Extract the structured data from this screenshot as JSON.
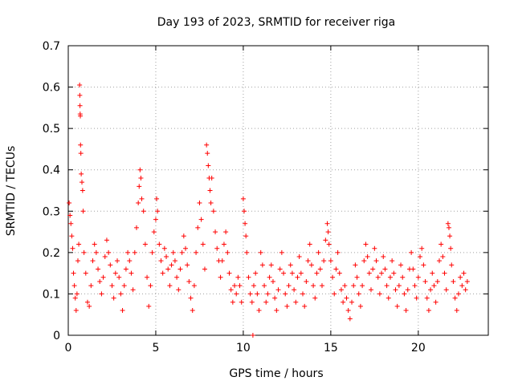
{
  "chart_data": {
    "type": "scatter",
    "title": "Day 193 of 2023, SRMTID for receiver riga",
    "xlabel": "GPS time / hours",
    "ylabel": "SRMTID / TECUs",
    "xlim": [
      0,
      24
    ],
    "ylim": [
      0,
      0.7
    ],
    "xticks": [
      {
        "value": 0,
        "label": "0"
      },
      {
        "value": 5,
        "label": "5"
      },
      {
        "value": 10,
        "label": "10"
      },
      {
        "value": 15,
        "label": "15"
      },
      {
        "value": 20,
        "label": "20"
      }
    ],
    "yticks": [
      {
        "value": 0,
        "label": "0"
      },
      {
        "value": 0.1,
        "label": "0.1"
      },
      {
        "value": 0.2,
        "label": "0.2"
      },
      {
        "value": 0.3,
        "label": "0.3"
      },
      {
        "value": 0.4,
        "label": "0.4"
      },
      {
        "value": 0.5,
        "label": "0.5"
      },
      {
        "value": 0.6,
        "label": "0.6"
      },
      {
        "value": 0.7,
        "label": "0.7"
      }
    ],
    "grid": true,
    "marker": "plus",
    "color": "#ff0000",
    "series": [
      {
        "name": "SRMTID",
        "points": [
          [
            0.05,
            0.32
          ],
          [
            0.1,
            0.29
          ],
          [
            0.15,
            0.27
          ],
          [
            0.2,
            0.24
          ],
          [
            0.25,
            0.21
          ],
          [
            0.3,
            0.15
          ],
          [
            0.35,
            0.12
          ],
          [
            0.4,
            0.09
          ],
          [
            0.45,
            0.06
          ],
          [
            0.5,
            0.1
          ],
          [
            0.55,
            0.18
          ],
          [
            0.6,
            0.22
          ],
          [
            0.65,
            0.605
          ],
          [
            0.66,
            0.58
          ],
          [
            0.67,
            0.555
          ],
          [
            0.68,
            0.535
          ],
          [
            0.69,
            0.53
          ],
          [
            0.7,
            0.46
          ],
          [
            0.72,
            0.44
          ],
          [
            0.74,
            0.39
          ],
          [
            0.78,
            0.37
          ],
          [
            0.82,
            0.35
          ],
          [
            0.85,
            0.3
          ],
          [
            0.9,
            0.2
          ],
          [
            1.0,
            0.15
          ],
          [
            1.1,
            0.08
          ],
          [
            1.2,
            0.07
          ],
          [
            1.3,
            0.12
          ],
          [
            1.4,
            0.18
          ],
          [
            1.5,
            0.22
          ],
          [
            1.6,
            0.2
          ],
          [
            1.7,
            0.16
          ],
          [
            1.8,
            0.13
          ],
          [
            1.9,
            0.1
          ],
          [
            2.0,
            0.14
          ],
          [
            2.1,
            0.19
          ],
          [
            2.2,
            0.23
          ],
          [
            2.3,
            0.2
          ],
          [
            2.4,
            0.17
          ],
          [
            2.5,
            0.12
          ],
          [
            2.6,
            0.09
          ],
          [
            2.7,
            0.15
          ],
          [
            2.8,
            0.18
          ],
          [
            2.9,
            0.14
          ],
          [
            3.0,
            0.1
          ],
          [
            3.1,
            0.06
          ],
          [
            3.2,
            0.12
          ],
          [
            3.3,
            0.16
          ],
          [
            3.4,
            0.2
          ],
          [
            3.5,
            0.18
          ],
          [
            3.6,
            0.15
          ],
          [
            3.7,
            0.11
          ],
          [
            3.8,
            0.2
          ],
          [
            3.9,
            0.26
          ],
          [
            4.0,
            0.32
          ],
          [
            4.05,
            0.36
          ],
          [
            4.1,
            0.4
          ],
          [
            4.15,
            0.38
          ],
          [
            4.2,
            0.33
          ],
          [
            4.3,
            0.3
          ],
          [
            4.4,
            0.22
          ],
          [
            4.5,
            0.14
          ],
          [
            4.6,
            0.07
          ],
          [
            4.7,
            0.12
          ],
          [
            4.8,
            0.2
          ],
          [
            4.9,
            0.25
          ],
          [
            5.0,
            0.28
          ],
          [
            5.05,
            0.33
          ],
          [
            5.1,
            0.3
          ],
          [
            5.2,
            0.22
          ],
          [
            5.3,
            0.18
          ],
          [
            5.4,
            0.15
          ],
          [
            5.5,
            0.21
          ],
          [
            5.6,
            0.19
          ],
          [
            5.7,
            0.16
          ],
          [
            5.8,
            0.12
          ],
          [
            5.9,
            0.17
          ],
          [
            6.0,
            0.2
          ],
          [
            6.1,
            0.18
          ],
          [
            6.2,
            0.14
          ],
          [
            6.3,
            0.11
          ],
          [
            6.4,
            0.16
          ],
          [
            6.5,
            0.2
          ],
          [
            6.6,
            0.24
          ],
          [
            6.7,
            0.21
          ],
          [
            6.8,
            0.17
          ],
          [
            6.9,
            0.13
          ],
          [
            7.0,
            0.09
          ],
          [
            7.1,
            0.06
          ],
          [
            7.2,
            0.12
          ],
          [
            7.3,
            0.2
          ],
          [
            7.4,
            0.26
          ],
          [
            7.5,
            0.32
          ],
          [
            7.6,
            0.28
          ],
          [
            7.7,
            0.22
          ],
          [
            7.8,
            0.16
          ],
          [
            7.9,
            0.46
          ],
          [
            7.95,
            0.44
          ],
          [
            8.0,
            0.41
          ],
          [
            8.05,
            0.38
          ],
          [
            8.1,
            0.35
          ],
          [
            8.15,
            0.32
          ],
          [
            8.2,
            0.38
          ],
          [
            8.3,
            0.3
          ],
          [
            8.4,
            0.25
          ],
          [
            8.5,
            0.21
          ],
          [
            8.6,
            0.18
          ],
          [
            8.7,
            0.14
          ],
          [
            8.8,
            0.18
          ],
          [
            8.9,
            0.22
          ],
          [
            9.0,
            0.25
          ],
          [
            9.1,
            0.2
          ],
          [
            9.2,
            0.15
          ],
          [
            9.3,
            0.11
          ],
          [
            9.4,
            0.08
          ],
          [
            9.5,
            0.12
          ],
          [
            9.6,
            0.1
          ],
          [
            9.7,
            0.14
          ],
          [
            9.8,
            0.12
          ],
          [
            9.9,
            0.08
          ],
          [
            10.0,
            0.33
          ],
          [
            10.05,
            0.3
          ],
          [
            10.1,
            0.27
          ],
          [
            10.15,
            0.24
          ],
          [
            10.2,
            0.2
          ],
          [
            10.3,
            0.14
          ],
          [
            10.4,
            0.1
          ],
          [
            10.5,
            0.08
          ],
          [
            10.6,
            0.12
          ],
          [
            10.7,
            0.15
          ],
          [
            10.8,
            0.1
          ],
          [
            10.9,
            0.06
          ],
          [
            11.0,
            0.2
          ],
          [
            11.1,
            0.17
          ],
          [
            11.2,
            0.12
          ],
          [
            11.3,
            0.08
          ],
          [
            11.4,
            0.1
          ],
          [
            11.5,
            0.14
          ],
          [
            11.6,
            0.17
          ],
          [
            11.7,
            0.13
          ],
          [
            11.8,
            0.09
          ],
          [
            11.9,
            0.06
          ],
          [
            12.0,
            0.11
          ],
          [
            12.1,
            0.16
          ],
          [
            12.2,
            0.2
          ],
          [
            12.3,
            0.15
          ],
          [
            12.4,
            0.1
          ],
          [
            12.5,
            0.07
          ],
          [
            12.6,
            0.12
          ],
          [
            12.7,
            0.17
          ],
          [
            12.8,
            0.15
          ],
          [
            12.9,
            0.11
          ],
          [
            13.0,
            0.08
          ],
          [
            13.1,
            0.14
          ],
          [
            13.2,
            0.19
          ],
          [
            13.3,
            0.15
          ],
          [
            13.4,
            0.1
          ],
          [
            13.5,
            0.07
          ],
          [
            13.6,
            0.13
          ],
          [
            13.7,
            0.18
          ],
          [
            13.8,
            0.22
          ],
          [
            13.9,
            0.17
          ],
          [
            14.0,
            0.12
          ],
          [
            14.1,
            0.09
          ],
          [
            14.2,
            0.15
          ],
          [
            14.3,
            0.2
          ],
          [
            14.4,
            0.16
          ],
          [
            14.5,
            0.12
          ],
          [
            14.6,
            0.18
          ],
          [
            14.7,
            0.23
          ],
          [
            14.8,
            0.27
          ],
          [
            14.85,
            0.25
          ],
          [
            14.9,
            0.22
          ],
          [
            15.0,
            0.18
          ],
          [
            15.1,
            0.14
          ],
          [
            15.2,
            0.1
          ],
          [
            15.3,
            0.16
          ],
          [
            15.4,
            0.2
          ],
          [
            15.5,
            0.15
          ],
          [
            15.6,
            0.11
          ],
          [
            15.7,
            0.08
          ],
          [
            15.8,
            0.12
          ],
          [
            15.9,
            0.09
          ],
          [
            16.0,
            0.06
          ],
          [
            16.1,
            0.04
          ],
          [
            16.2,
            0.08
          ],
          [
            16.3,
            0.12
          ],
          [
            16.4,
            0.17
          ],
          [
            16.5,
            0.14
          ],
          [
            16.6,
            0.1
          ],
          [
            16.7,
            0.07
          ],
          [
            16.8,
            0.12
          ],
          [
            16.9,
            0.18
          ],
          [
            17.0,
            0.22
          ],
          [
            17.1,
            0.19
          ],
          [
            17.2,
            0.15
          ],
          [
            17.3,
            0.11
          ],
          [
            17.4,
            0.16
          ],
          [
            17.5,
            0.21
          ],
          [
            17.6,
            0.18
          ],
          [
            17.7,
            0.14
          ],
          [
            17.8,
            0.1
          ],
          [
            17.9,
            0.15
          ],
          [
            18.0,
            0.19
          ],
          [
            18.1,
            0.16
          ],
          [
            18.2,
            0.12
          ],
          [
            18.3,
            0.09
          ],
          [
            18.4,
            0.14
          ],
          [
            18.5,
            0.18
          ],
          [
            18.6,
            0.15
          ],
          [
            18.7,
            0.11
          ],
          [
            18.8,
            0.07
          ],
          [
            18.9,
            0.12
          ],
          [
            19.0,
            0.17
          ],
          [
            19.1,
            0.14
          ],
          [
            19.2,
            0.1
          ],
          [
            19.3,
            0.06
          ],
          [
            19.4,
            0.11
          ],
          [
            19.5,
            0.16
          ],
          [
            19.6,
            0.2
          ],
          [
            19.7,
            0.16
          ],
          [
            19.8,
            0.12
          ],
          [
            19.9,
            0.09
          ],
          [
            20.0,
            0.14
          ],
          [
            20.1,
            0.19
          ],
          [
            20.2,
            0.21
          ],
          [
            20.3,
            0.17
          ],
          [
            20.4,
            0.13
          ],
          [
            20.5,
            0.09
          ],
          [
            20.6,
            0.06
          ],
          [
            20.7,
            0.11
          ],
          [
            20.8,
            0.15
          ],
          [
            20.9,
            0.12
          ],
          [
            21.0,
            0.08
          ],
          [
            21.1,
            0.13
          ],
          [
            21.2,
            0.18
          ],
          [
            21.3,
            0.22
          ],
          [
            21.4,
            0.19
          ],
          [
            21.5,
            0.15
          ],
          [
            21.6,
            0.11
          ],
          [
            21.7,
            0.27
          ],
          [
            21.75,
            0.26
          ],
          [
            21.8,
            0.24
          ],
          [
            21.85,
            0.21
          ],
          [
            21.9,
            0.17
          ],
          [
            22.0,
            0.13
          ],
          [
            22.1,
            0.09
          ],
          [
            22.2,
            0.06
          ],
          [
            22.3,
            0.1
          ],
          [
            22.4,
            0.14
          ],
          [
            22.5,
            0.12
          ],
          [
            22.6,
            0.15
          ],
          [
            22.7,
            0.11
          ],
          [
            22.8,
            0.13
          ],
          [
            10.55,
            0.0
          ]
        ]
      }
    ]
  }
}
